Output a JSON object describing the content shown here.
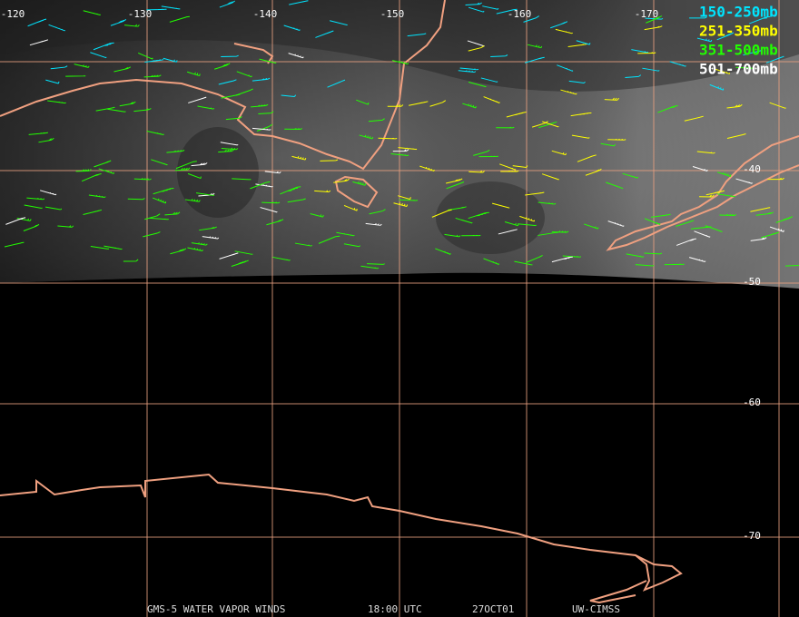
{
  "map": {
    "longitude_labels": [
      "-120",
      "-130",
      "-140",
      "-150",
      "-160",
      "-170"
    ],
    "latitude_labels": [
      "-40",
      "-50",
      "-60",
      "-70"
    ],
    "legend": [
      {
        "label": "150-250mb",
        "color": "#00e5ff"
      },
      {
        "label": "251-350mb",
        "color": "#ffff00"
      },
      {
        "label": "351-500mb",
        "color": "#22ff00"
      },
      {
        "label": "501-700mb",
        "color": "#ffffff"
      }
    ],
    "footer": [
      "GMS-5 WATER VAPOR WINDS",
      "18:00 UTC",
      "27OCT01",
      "UW-CIMSS"
    ]
  }
}
